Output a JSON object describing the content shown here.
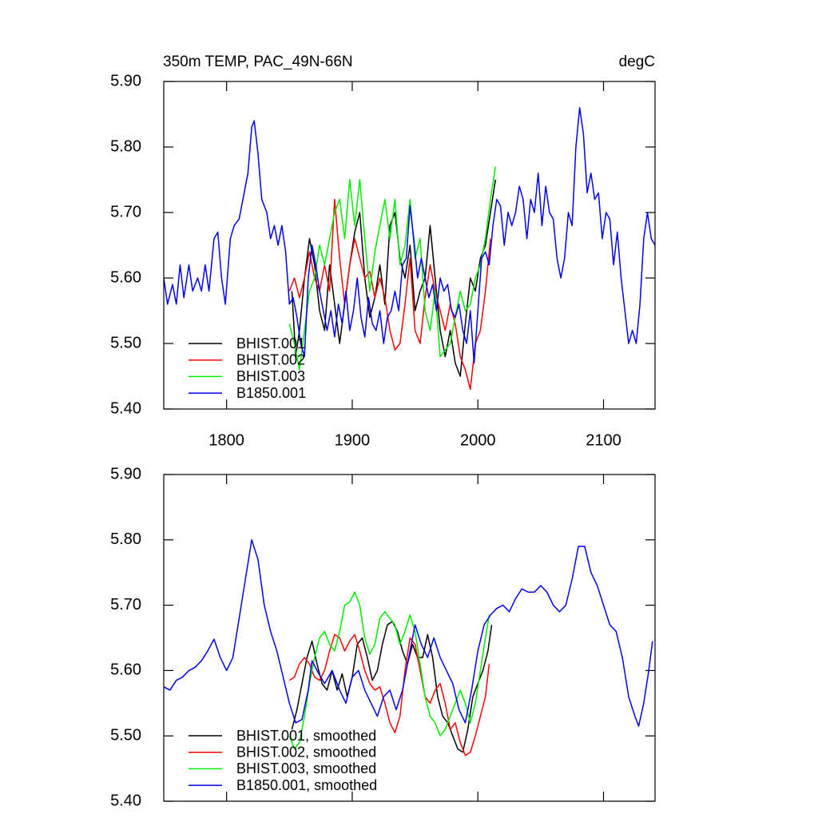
{
  "chart_data": [
    {
      "type": "line",
      "title": "350m TEMP, PAC_49N-66N",
      "units": "degC",
      "legend": "lower left",
      "xlim": [
        1750,
        2141
      ],
      "xticks": [
        1800,
        1900,
        2000,
        2100
      ],
      "show_xtick_labels": true,
      "ylim": [
        5.4,
        5.9
      ],
      "yticks": [
        {
          "value": 5.4,
          "label": "5.40"
        },
        {
          "value": 5.5,
          "label": "5.50"
        },
        {
          "value": 5.6,
          "label": "5.60"
        },
        {
          "value": 5.7,
          "label": "5.70"
        },
        {
          "value": 5.8,
          "label": "5.80"
        },
        {
          "value": 5.9,
          "label": "5.90"
        }
      ],
      "series": [
        {
          "name": "BHIST.001",
          "color": "#000000",
          "x": [
            1852,
            1855,
            1858,
            1862,
            1866,
            1870,
            1874,
            1878,
            1882,
            1886,
            1890,
            1894,
            1898,
            1902,
            1906,
            1910,
            1914,
            1918,
            1922,
            1926,
            1930,
            1934,
            1938,
            1942,
            1946,
            1950,
            1954,
            1958,
            1962,
            1966,
            1970,
            1974,
            1978,
            1982,
            1986,
            1990,
            1994,
            1998,
            2002,
            2006,
            2010,
            2014
          ],
          "values": [
            5.58,
            5.48,
            5.52,
            5.6,
            5.66,
            5.62,
            5.55,
            5.52,
            5.62,
            5.56,
            5.5,
            5.56,
            5.62,
            5.67,
            5.7,
            5.6,
            5.54,
            5.57,
            5.62,
            5.56,
            5.68,
            5.7,
            5.63,
            5.6,
            5.65,
            5.55,
            5.58,
            5.6,
            5.68,
            5.6,
            5.52,
            5.48,
            5.52,
            5.47,
            5.45,
            5.53,
            5.6,
            5.58,
            5.63,
            5.65,
            5.7,
            5.75
          ]
        },
        {
          "name": "BHIST.002",
          "color": "#ff0000",
          "x": [
            1850,
            1854,
            1858,
            1862,
            1866,
            1870,
            1874,
            1878,
            1882,
            1886,
            1890,
            1894,
            1898,
            1902,
            1906,
            1910,
            1914,
            1918,
            1922,
            1926,
            1930,
            1934,
            1938,
            1942,
            1946,
            1950,
            1954,
            1958,
            1962,
            1966,
            1970,
            1974,
            1978,
            1982,
            1986,
            1990,
            1994,
            1998,
            2002,
            2006,
            2010
          ],
          "values": [
            5.58,
            5.6,
            5.57,
            5.6,
            5.64,
            5.6,
            5.58,
            5.62,
            5.58,
            5.72,
            5.63,
            5.56,
            5.62,
            5.66,
            5.63,
            5.6,
            5.61,
            5.57,
            5.6,
            5.57,
            5.52,
            5.49,
            5.5,
            5.56,
            5.63,
            5.52,
            5.5,
            5.57,
            5.62,
            5.58,
            5.55,
            5.52,
            5.56,
            5.53,
            5.48,
            5.46,
            5.43,
            5.5,
            5.52,
            5.58,
            5.66
          ]
        },
        {
          "name": "BHIST.003",
          "color": "#00ee00",
          "x": [
            1850,
            1854,
            1858,
            1862,
            1866,
            1870,
            1874,
            1878,
            1882,
            1886,
            1890,
            1894,
            1898,
            1902,
            1906,
            1910,
            1914,
            1918,
            1922,
            1926,
            1930,
            1934,
            1938,
            1942,
            1946,
            1950,
            1954,
            1958,
            1962,
            1966,
            1970,
            1974,
            1978,
            1982,
            1986,
            1990,
            1994,
            1998,
            2002,
            2006,
            2010,
            2014
          ],
          "values": [
            5.53,
            5.5,
            5.46,
            5.52,
            5.58,
            5.6,
            5.65,
            5.62,
            5.66,
            5.7,
            5.72,
            5.66,
            5.75,
            5.68,
            5.75,
            5.66,
            5.58,
            5.64,
            5.68,
            5.72,
            5.66,
            5.72,
            5.62,
            5.65,
            5.72,
            5.63,
            5.66,
            5.55,
            5.52,
            5.58,
            5.48,
            5.49,
            5.5,
            5.54,
            5.58,
            5.55,
            5.56,
            5.6,
            5.62,
            5.66,
            5.72,
            5.77
          ]
        },
        {
          "name": "B1850.001",
          "color": "#0000ee",
          "x": [
            1750,
            1753,
            1757,
            1760,
            1763,
            1766,
            1770,
            1773,
            1777,
            1780,
            1783,
            1786,
            1790,
            1793,
            1796,
            1799,
            1803,
            1806,
            1810,
            1813,
            1817,
            1820,
            1822,
            1825,
            1828,
            1832,
            1835,
            1838,
            1841,
            1844,
            1847,
            1850,
            1853,
            1856,
            1859,
            1862,
            1865,
            1868,
            1871,
            1874,
            1877,
            1880,
            1883,
            1886,
            1889,
            1892,
            1895,
            1898,
            1901,
            1904,
            1907,
            1910,
            1913,
            1916,
            1919,
            1922,
            1925,
            1928,
            1931,
            1934,
            1937,
            1940,
            1943,
            1946,
            1949,
            1952,
            1955,
            1958,
            1961,
            1964,
            1967,
            1970,
            1973,
            1976,
            1979,
            1982,
            1985,
            1988,
            1991,
            1994,
            1997,
            2000,
            2003,
            2006,
            2009,
            2012,
            2015,
            2018,
            2021,
            2024,
            2027,
            2030,
            2033,
            2036,
            2039,
            2042,
            2045,
            2048,
            2051,
            2054,
            2057,
            2060,
            2063,
            2066,
            2069,
            2072,
            2075,
            2078,
            2081,
            2084,
            2087,
            2090,
            2093,
            2096,
            2099,
            2102,
            2105,
            2108,
            2111,
            2114,
            2117,
            2120,
            2123,
            2126,
            2129,
            2132,
            2135,
            2138,
            2141
          ],
          "values": [
            5.6,
            5.56,
            5.59,
            5.56,
            5.62,
            5.57,
            5.62,
            5.58,
            5.6,
            5.58,
            5.62,
            5.58,
            5.66,
            5.67,
            5.6,
            5.56,
            5.66,
            5.68,
            5.69,
            5.72,
            5.76,
            5.83,
            5.84,
            5.79,
            5.72,
            5.7,
            5.66,
            5.68,
            5.65,
            5.68,
            5.64,
            5.56,
            5.57,
            5.54,
            5.5,
            5.48,
            5.6,
            5.65,
            5.62,
            5.58,
            5.55,
            5.52,
            5.55,
            5.51,
            5.56,
            5.53,
            5.58,
            5.52,
            5.55,
            5.6,
            5.54,
            5.51,
            5.57,
            5.53,
            5.52,
            5.55,
            5.5,
            5.54,
            5.55,
            5.58,
            5.55,
            5.62,
            5.63,
            5.71,
            5.66,
            5.6,
            5.63,
            5.6,
            5.57,
            5.59,
            5.55,
            5.6,
            5.58,
            5.59,
            5.55,
            5.54,
            5.56,
            5.52,
            5.5,
            5.55,
            5.47,
            5.55,
            5.63,
            5.64,
            5.62,
            5.68,
            5.72,
            5.71,
            5.65,
            5.7,
            5.68,
            5.7,
            5.74,
            5.72,
            5.66,
            5.72,
            5.7,
            5.76,
            5.68,
            5.74,
            5.7,
            5.69,
            5.63,
            5.6,
            5.63,
            5.7,
            5.68,
            5.8,
            5.86,
            5.82,
            5.73,
            5.76,
            5.72,
            5.73,
            5.66,
            5.7,
            5.69,
            5.62,
            5.67,
            5.6,
            5.55,
            5.5,
            5.52,
            5.5,
            5.56,
            5.66,
            5.7,
            5.66,
            5.65
          ]
        }
      ]
    },
    {
      "type": "line",
      "legend": "lower left",
      "xlim": [
        1750,
        2141
      ],
      "xticks": [
        1800,
        1900,
        2000,
        2100
      ],
      "show_xtick_labels": false,
      "ylim": [
        5.4,
        5.9
      ],
      "yticks": [
        {
          "value": 5.4,
          "label": "5.40"
        },
        {
          "value": 5.5,
          "label": "5.50"
        },
        {
          "value": 5.6,
          "label": "5.60"
        },
        {
          "value": 5.7,
          "label": "5.70"
        },
        {
          "value": 5.8,
          "label": "5.80"
        },
        {
          "value": 5.9,
          "label": "5.90"
        }
      ],
      "series": [
        {
          "name": "BHIST.001, smoothed",
          "color": "#000000",
          "x": [
            1852,
            1856,
            1860,
            1864,
            1868,
            1872,
            1876,
            1880,
            1884,
            1888,
            1892,
            1896,
            1900,
            1904,
            1908,
            1912,
            1916,
            1920,
            1924,
            1928,
            1932,
            1936,
            1940,
            1944,
            1948,
            1952,
            1956,
            1960,
            1964,
            1968,
            1972,
            1976,
            1980,
            1984,
            1988,
            1992,
            1996,
            2000,
            2004,
            2008,
            2011
          ],
          "values": [
            5.51,
            5.54,
            5.58,
            5.62,
            5.645,
            5.61,
            5.58,
            5.57,
            5.6,
            5.57,
            5.595,
            5.56,
            5.59,
            5.64,
            5.65,
            5.62,
            5.585,
            5.6,
            5.64,
            5.67,
            5.675,
            5.66,
            5.63,
            5.61,
            5.64,
            5.62,
            5.62,
            5.655,
            5.62,
            5.56,
            5.53,
            5.52,
            5.5,
            5.48,
            5.475,
            5.51,
            5.56,
            5.58,
            5.6,
            5.63,
            5.67
          ]
        },
        {
          "name": "BHIST.002, smoothed",
          "color": "#ff0000",
          "x": [
            1850,
            1854,
            1858,
            1862,
            1866,
            1870,
            1874,
            1878,
            1882,
            1886,
            1890,
            1894,
            1898,
            1902,
            1906,
            1910,
            1914,
            1918,
            1922,
            1926,
            1930,
            1934,
            1938,
            1942,
            1946,
            1950,
            1954,
            1958,
            1962,
            1966,
            1970,
            1974,
            1978,
            1982,
            1986,
            1990,
            1994,
            1998,
            2002,
            2006,
            2009
          ],
          "values": [
            5.585,
            5.59,
            5.61,
            5.62,
            5.61,
            5.59,
            5.585,
            5.6,
            5.63,
            5.655,
            5.65,
            5.63,
            5.645,
            5.655,
            5.63,
            5.6,
            5.58,
            5.57,
            5.575,
            5.55,
            5.52,
            5.505,
            5.53,
            5.6,
            5.65,
            5.64,
            5.6,
            5.56,
            5.55,
            5.57,
            5.58,
            5.55,
            5.51,
            5.52,
            5.49,
            5.47,
            5.475,
            5.5,
            5.53,
            5.56,
            5.61
          ]
        },
        {
          "name": "BHIST.003, smoothed",
          "color": "#00ee00",
          "x": [
            1850,
            1854,
            1858,
            1862,
            1866,
            1870,
            1874,
            1878,
            1882,
            1886,
            1890,
            1894,
            1898,
            1902,
            1906,
            1910,
            1914,
            1918,
            1922,
            1926,
            1930,
            1934,
            1938,
            1942,
            1946,
            1950,
            1954,
            1958,
            1962,
            1966,
            1970,
            1974,
            1978,
            1982,
            1986,
            1990,
            1994,
            1998,
            2002,
            2006,
            2009
          ],
          "values": [
            5.5,
            5.48,
            5.49,
            5.53,
            5.58,
            5.62,
            5.65,
            5.66,
            5.64,
            5.63,
            5.66,
            5.7,
            5.705,
            5.72,
            5.7,
            5.65,
            5.625,
            5.64,
            5.68,
            5.69,
            5.68,
            5.67,
            5.64,
            5.66,
            5.685,
            5.66,
            5.61,
            5.56,
            5.53,
            5.52,
            5.5,
            5.51,
            5.53,
            5.55,
            5.57,
            5.55,
            5.52,
            5.55,
            5.6,
            5.65,
            5.685
          ]
        },
        {
          "name": "B1850.001, smoothed",
          "color": "#0000ee",
          "x": [
            1750,
            1755,
            1760,
            1765,
            1770,
            1775,
            1780,
            1785,
            1790,
            1795,
            1800,
            1805,
            1810,
            1815,
            1820,
            1825,
            1830,
            1835,
            1840,
            1845,
            1850,
            1855,
            1860,
            1865,
            1868,
            1872,
            1878,
            1884,
            1890,
            1895,
            1900,
            1905,
            1910,
            1915,
            1920,
            1925,
            1930,
            1935,
            1940,
            1945,
            1950,
            1955,
            1960,
            1965,
            1970,
            1975,
            1980,
            1985,
            1990,
            1995,
            2000,
            2005,
            2010,
            2015,
            2020,
            2025,
            2030,
            2035,
            2040,
            2045,
            2050,
            2055,
            2060,
            2065,
            2070,
            2075,
            2080,
            2085,
            2090,
            2095,
            2100,
            2105,
            2110,
            2115,
            2120,
            2125,
            2128,
            2132,
            2136,
            2139
          ],
          "values": [
            5.575,
            5.57,
            5.585,
            5.59,
            5.6,
            5.605,
            5.615,
            5.63,
            5.648,
            5.62,
            5.6,
            5.62,
            5.68,
            5.74,
            5.8,
            5.77,
            5.7,
            5.66,
            5.63,
            5.59,
            5.55,
            5.52,
            5.525,
            5.57,
            5.615,
            5.6,
            5.58,
            5.6,
            5.57,
            5.55,
            5.59,
            5.6,
            5.57,
            5.55,
            5.53,
            5.56,
            5.57,
            5.54,
            5.57,
            5.62,
            5.67,
            5.64,
            5.62,
            5.65,
            5.62,
            5.6,
            5.58,
            5.54,
            5.52,
            5.57,
            5.63,
            5.67,
            5.685,
            5.695,
            5.7,
            5.69,
            5.71,
            5.725,
            5.72,
            5.72,
            5.73,
            5.72,
            5.7,
            5.69,
            5.7,
            5.74,
            5.79,
            5.79,
            5.75,
            5.73,
            5.7,
            5.67,
            5.66,
            5.62,
            5.56,
            5.53,
            5.515,
            5.55,
            5.6,
            5.645
          ]
        }
      ]
    }
  ]
}
